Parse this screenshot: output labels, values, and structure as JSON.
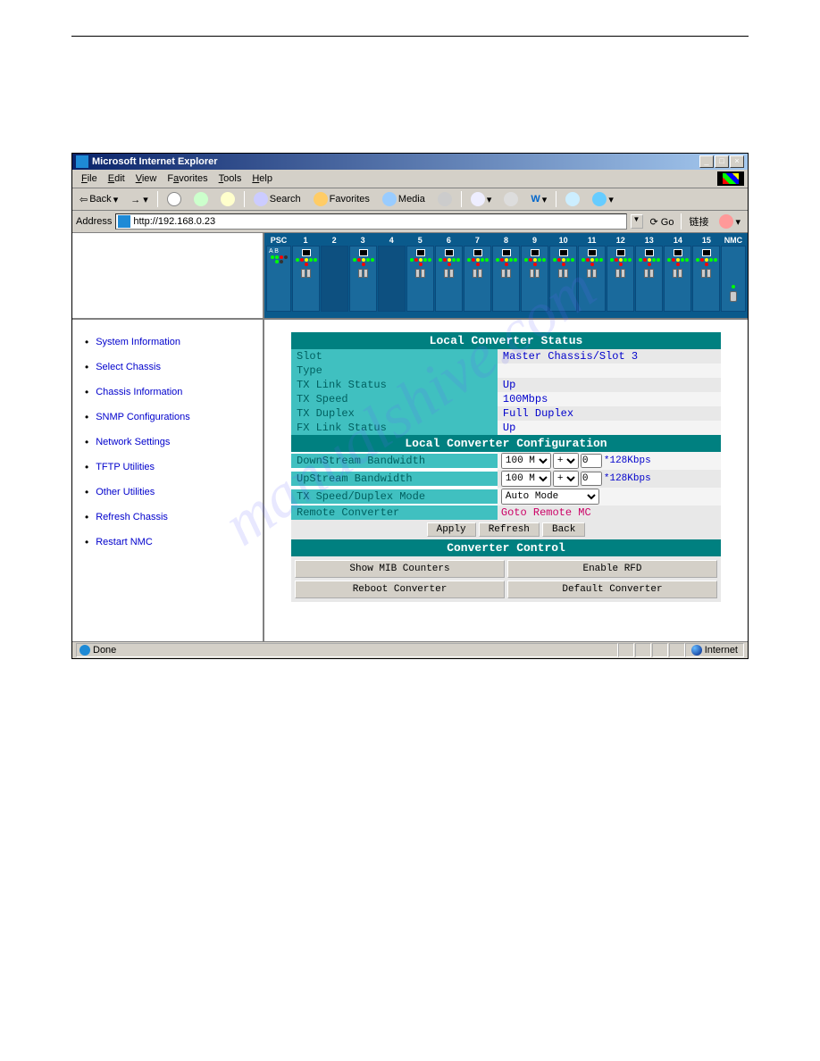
{
  "window": {
    "title": "Microsoft Internet Explorer",
    "menus": [
      "File",
      "Edit",
      "View",
      "Favorites",
      "Tools",
      "Help"
    ],
    "back": "Back",
    "search": "Search",
    "favorites": "Favorites",
    "media": "Media",
    "address_label": "Address",
    "url": "http://192.168.0.23",
    "go": "Go",
    "links": "链接",
    "status_done": "Done",
    "status_zone": "Internet"
  },
  "rack": {
    "psc": "PSC",
    "nmc": "NMC",
    "ab": "A B",
    "slots": [
      "1",
      "2",
      "3",
      "4",
      "5",
      "6",
      "7",
      "8",
      "9",
      "10",
      "11",
      "12",
      "13",
      "14",
      "15"
    ]
  },
  "sidebar": {
    "items": [
      "System Information",
      "Select Chassis",
      "Chassis Information",
      "SNMP Configurations",
      "Network Settings",
      "TFTP Utilities",
      "Other Utilities",
      "Refresh Chassis",
      "Restart NMC"
    ]
  },
  "status": {
    "header": "Local Converter Status",
    "rows": [
      {
        "label": "Slot",
        "value": "Master Chassis/Slot 3"
      },
      {
        "label": "Type",
        "value": ""
      },
      {
        "label": "TX Link Status",
        "value": "Up"
      },
      {
        "label": "TX Speed",
        "value": "100Mbps"
      },
      {
        "label": "TX Duplex",
        "value": "Full Duplex"
      },
      {
        "label": "FX Link Status",
        "value": "Up"
      }
    ]
  },
  "config": {
    "header": "Local Converter Configuration",
    "downstream": {
      "label": "DownStream Bandwidth",
      "sel": "100 M",
      "op": "+",
      "val": "0",
      "unit": "*128Kbps"
    },
    "upstream": {
      "label": "UpStream Bandwidth",
      "sel": "100 M",
      "op": "+",
      "val": "0",
      "unit": "*128Kbps"
    },
    "duplex": {
      "label": "TX Speed/Duplex Mode",
      "sel": "Auto Mode"
    },
    "remote": {
      "label": "Remote Converter",
      "link": "Goto Remote MC"
    },
    "apply": "Apply",
    "refresh": "Refresh",
    "back": "Back"
  },
  "control": {
    "header": "Converter Control",
    "show_mib": "Show MIB Counters",
    "enable_rfd": "Enable RFD",
    "reboot": "Reboot Converter",
    "default": "Default Converter"
  },
  "watermark": "manualshive.com"
}
